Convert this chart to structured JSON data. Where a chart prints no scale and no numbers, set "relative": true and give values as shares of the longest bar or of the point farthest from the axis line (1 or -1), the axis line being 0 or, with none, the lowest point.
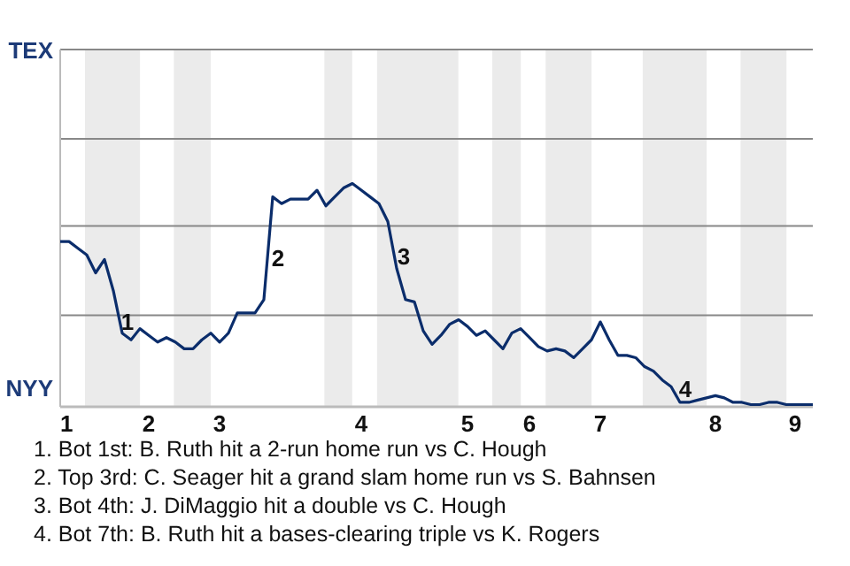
{
  "chart_data": {
    "type": "line",
    "relative": true,
    "marker": "none",
    "line_style": "solid",
    "categories": [
      "1",
      null,
      null,
      null,
      null,
      null,
      null,
      null,
      null,
      null,
      "2",
      null,
      null,
      null,
      null,
      null,
      null,
      null,
      "3",
      null,
      null,
      null,
      null,
      null,
      null,
      null,
      null,
      null,
      null,
      null,
      null,
      null,
      null,
      null,
      "4",
      null,
      null,
      null,
      null,
      null,
      null,
      null,
      null,
      null,
      null,
      null,
      "5",
      null,
      null,
      null,
      null,
      null,
      null,
      "6",
      null,
      null,
      null,
      null,
      null,
      null,
      null,
      "7",
      null,
      null,
      null,
      null,
      null,
      null,
      null,
      null,
      null,
      null,
      null,
      null,
      "8",
      null,
      null,
      null,
      null,
      null,
      null,
      null,
      null,
      "9",
      null,
      null
    ],
    "series": [
      {
        "color": "#0b2d6b",
        "values": [
          0.74,
          0.74,
          0.71,
          0.68,
          0.6,
          0.66,
          0.52,
          0.33,
          0.3,
          0.35,
          0.32,
          0.29,
          0.31,
          0.29,
          0.26,
          0.26,
          0.3,
          0.33,
          0.29,
          0.33,
          0.42,
          0.42,
          0.42,
          0.48,
          0.94,
          0.91,
          0.93,
          0.93,
          0.93,
          0.97,
          0.9,
          0.94,
          0.98,
          1,
          0.97,
          0.94,
          0.91,
          0.83,
          0.62,
          0.48,
          0.47,
          0.34,
          0.28,
          0.32,
          0.37,
          0.39,
          0.36,
          0.32,
          0.34,
          0.3,
          0.26,
          0.33,
          0.35,
          0.31,
          0.27,
          0.25,
          0.26,
          0.25,
          0.22,
          0.26,
          0.3,
          0.38,
          0.3,
          0.23,
          0.23,
          0.22,
          0.18,
          0.16,
          0.12,
          0.09,
          0.02,
          0.02,
          0.03,
          0.04,
          0.05,
          0.04,
          0.02,
          0.02,
          0.01,
          0.01,
          0.02,
          0.02,
          0.01,
          0.01,
          0.01,
          0.01
        ]
      }
    ],
    "ref_lines": [
      {
        "axis": "y",
        "value": 0.41,
        "color": "#888888"
      },
      {
        "axis": "y",
        "value": 0.81,
        "color": "#888888"
      }
    ],
    "annotations": [
      "TEX",
      "NYY",
      "1",
      "2",
      "3",
      "4",
      "1. Bot 1st: B. Ruth hit a 2-run home run vs C. Hough",
      "2. Top 3rd: C. Seager hit a grand slam home run vs S. Bahnsen",
      "3. Bot 4th: J. DiMaggio hit a double vs C. Hough",
      "4. Bot 7th: B. Ruth hit a bases-clearing triple vs K. Rogers"
    ]
  }
}
